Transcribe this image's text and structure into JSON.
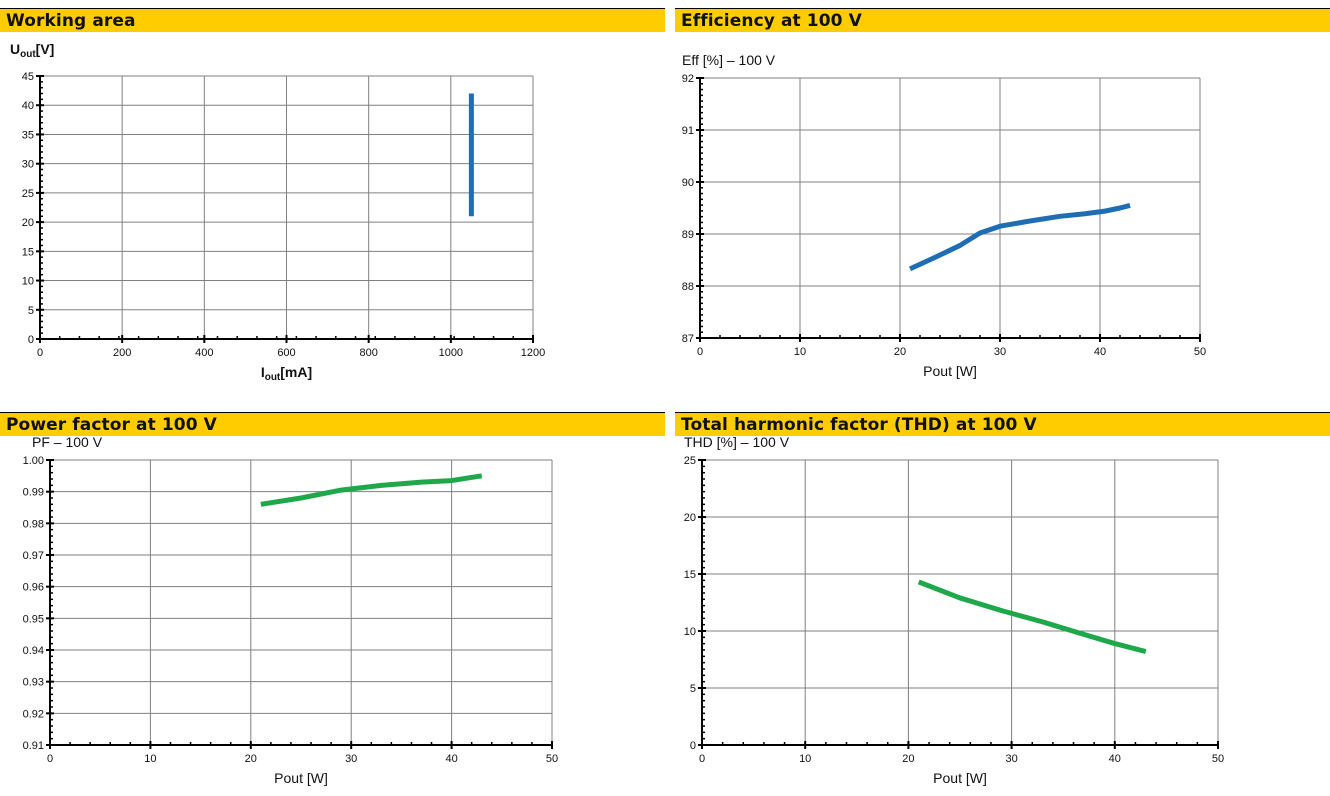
{
  "panels": [
    {
      "title": "Working area"
    },
    {
      "title": "Efficiency at 100 V"
    },
    {
      "title": "Power factor at 100 V"
    },
    {
      "title": "Total harmonic factor (THD) at 100 V"
    }
  ],
  "chart_data": [
    {
      "type": "line",
      "title": "Working area",
      "ylabel_main": "U",
      "ylabel_sub": "out",
      "ylabel_unit": "[V]",
      "xlabel_main": "I",
      "xlabel_sub": "out",
      "xlabel_unit": "[mA]",
      "xlim": [
        0,
        1200
      ],
      "ylim": [
        0,
        45
      ],
      "xticks": [
        0,
        200,
        400,
        600,
        800,
        1000,
        1200
      ],
      "yticks": [
        0,
        5,
        10,
        15,
        20,
        25,
        30,
        35,
        40,
        45
      ],
      "grid": true,
      "series": [
        {
          "color": "#1f6eb4",
          "points": [
            [
              1050,
              21
            ],
            [
              1050,
              42
            ]
          ]
        }
      ]
    },
    {
      "type": "line",
      "title": "Efficiency at 100 V",
      "subtitle": "Eff [%] – 100 V",
      "xlabel": "Pout [W]",
      "xlim": [
        0,
        50
      ],
      "ylim": [
        87,
        92
      ],
      "xticks": [
        0,
        10,
        20,
        30,
        40,
        50
      ],
      "yticks": [
        87,
        88,
        89,
        90,
        91,
        92
      ],
      "grid": true,
      "series": [
        {
          "color": "#1f6eb4",
          "points": [
            [
              21,
              88.33
            ],
            [
              23.5,
              88.55
            ],
            [
              26,
              88.78
            ],
            [
              28,
              89.02
            ],
            [
              30,
              89.15
            ],
            [
              33,
              89.25
            ],
            [
              36,
              89.34
            ],
            [
              38.5,
              89.39
            ],
            [
              40.5,
              89.44
            ],
            [
              42,
              89.5
            ],
            [
              43,
              89.55
            ]
          ]
        }
      ]
    },
    {
      "type": "line",
      "title": "Power factor at 100 V",
      "subtitle": "PF – 100 V",
      "xlabel": "Pout [W]",
      "xlim": [
        0,
        50
      ],
      "ylim": [
        0.91,
        1.0
      ],
      "xticks": [
        0,
        10,
        20,
        30,
        40,
        50
      ],
      "yticks": [
        "0.91",
        "0.92",
        "0.93",
        "0.94",
        "0.95",
        "0.96",
        "0.97",
        "0.98",
        "0.99",
        "1.00"
      ],
      "grid": true,
      "series": [
        {
          "color": "#1fa84a",
          "points": [
            [
              21,
              0.986
            ],
            [
              25,
              0.988
            ],
            [
              29,
              0.9905
            ],
            [
              33,
              0.992
            ],
            [
              37,
              0.993
            ],
            [
              40,
              0.9935
            ],
            [
              43,
              0.995
            ]
          ]
        }
      ]
    },
    {
      "type": "line",
      "title": "Total harmonic factor (THD) at 100 V",
      "subtitle": "THD [%] – 100 V",
      "xlabel": "Pout [W]",
      "xlim": [
        0,
        50
      ],
      "ylim": [
        0,
        25
      ],
      "xticks": [
        0,
        10,
        20,
        30,
        40,
        50
      ],
      "yticks": [
        0,
        5,
        10,
        15,
        20,
        25
      ],
      "grid": true,
      "series": [
        {
          "color": "#1fa84a",
          "points": [
            [
              21,
              14.3
            ],
            [
              25,
              12.9
            ],
            [
              29,
              11.8
            ],
            [
              33,
              10.8
            ],
            [
              37,
              9.7
            ],
            [
              40,
              8.9
            ],
            [
              43,
              8.2
            ]
          ]
        }
      ]
    }
  ]
}
